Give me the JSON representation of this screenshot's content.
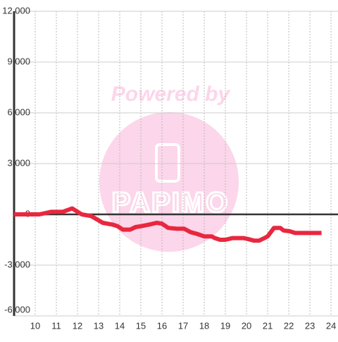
{
  "chart_data": {
    "type": "line",
    "watermark": {
      "title": "Powered by",
      "logo": "PAPIMO"
    },
    "series": [
      {
        "color": "#e8283f",
        "x": [
          9.0,
          10.2,
          10.75,
          11.3,
          11.75,
          12.2,
          12.65,
          13.2,
          13.65,
          13.9,
          14.15,
          14.5,
          14.75,
          15.0,
          15.4,
          15.75,
          16.0,
          16.3,
          16.7,
          17.05,
          17.35,
          17.65,
          18.0,
          18.35,
          18.5,
          18.75,
          19.0,
          19.35,
          19.6,
          19.85,
          20.05,
          20.35,
          20.6,
          20.85,
          21.0,
          21.3,
          21.6,
          21.75,
          22.05,
          22.3,
          23.55
        ],
        "values": [
          0,
          0,
          150,
          150,
          350,
          0,
          -100,
          -500,
          -600,
          -700,
          -900,
          -900,
          -750,
          -700,
          -600,
          -500,
          -550,
          -800,
          -850,
          -850,
          -1050,
          -1150,
          -1300,
          -1300,
          -1400,
          -1500,
          -1500,
          -1400,
          -1400,
          -1400,
          -1450,
          -1550,
          -1550,
          -1400,
          -1300,
          -800,
          -800,
          -950,
          -1000,
          -1100,
          -1100
        ]
      }
    ],
    "xlim": [
      9,
      24.33
    ],
    "xticks": [
      10,
      11,
      12,
      13,
      14,
      15,
      16,
      17,
      18,
      19,
      20,
      21,
      22,
      23,
      24
    ],
    "ylim": [
      -6000,
      12000
    ],
    "yticks": [
      {
        "value": -6000,
        "label": "-6,000"
      },
      {
        "value": -3000,
        "label": "-3,000"
      },
      0,
      {
        "value": 3000,
        "label": "3,000"
      },
      {
        "value": 6000,
        "label": "6,000"
      },
      {
        "value": 9000,
        "label": "9,000"
      },
      {
        "value": 12000,
        "label": "12,000"
      }
    ],
    "grid": true
  }
}
